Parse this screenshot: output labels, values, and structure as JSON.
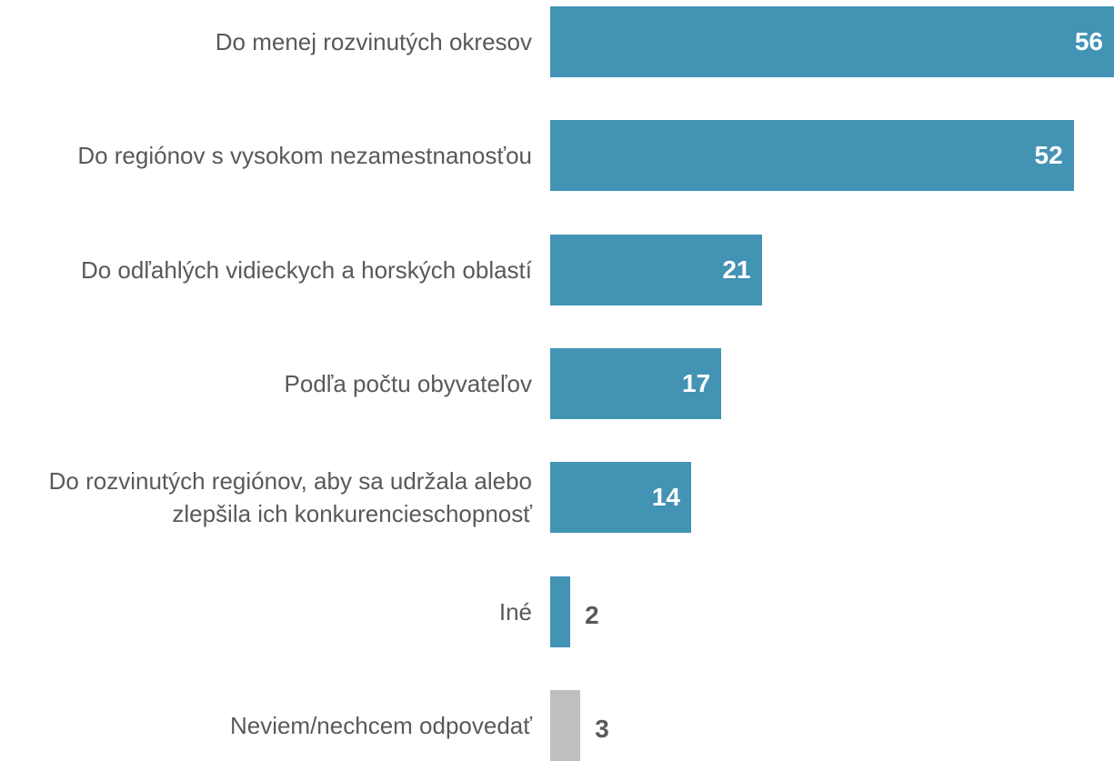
{
  "chart_data": {
    "type": "bar",
    "orientation": "horizontal",
    "categories": [
      "Do menej rozvinutých okresov",
      "Do regiónov s vysokom nezamestnanosťou",
      "Do odľahlých vidieckych a horských oblastí",
      "Podľa počtu obyvateľov",
      "Do rozvinutých regiónov, aby sa udržala alebo zlepšila ich konkurencieschopnosť",
      "Iné",
      "Neviem/nechcem odpovedať"
    ],
    "values": [
      56,
      52,
      21,
      17,
      14,
      2,
      3
    ],
    "colors": [
      "#4393b5",
      "#4393b5",
      "#4393b5",
      "#4393b5",
      "#4393b5",
      "#4393b5",
      "#bfbfbf"
    ]
  }
}
